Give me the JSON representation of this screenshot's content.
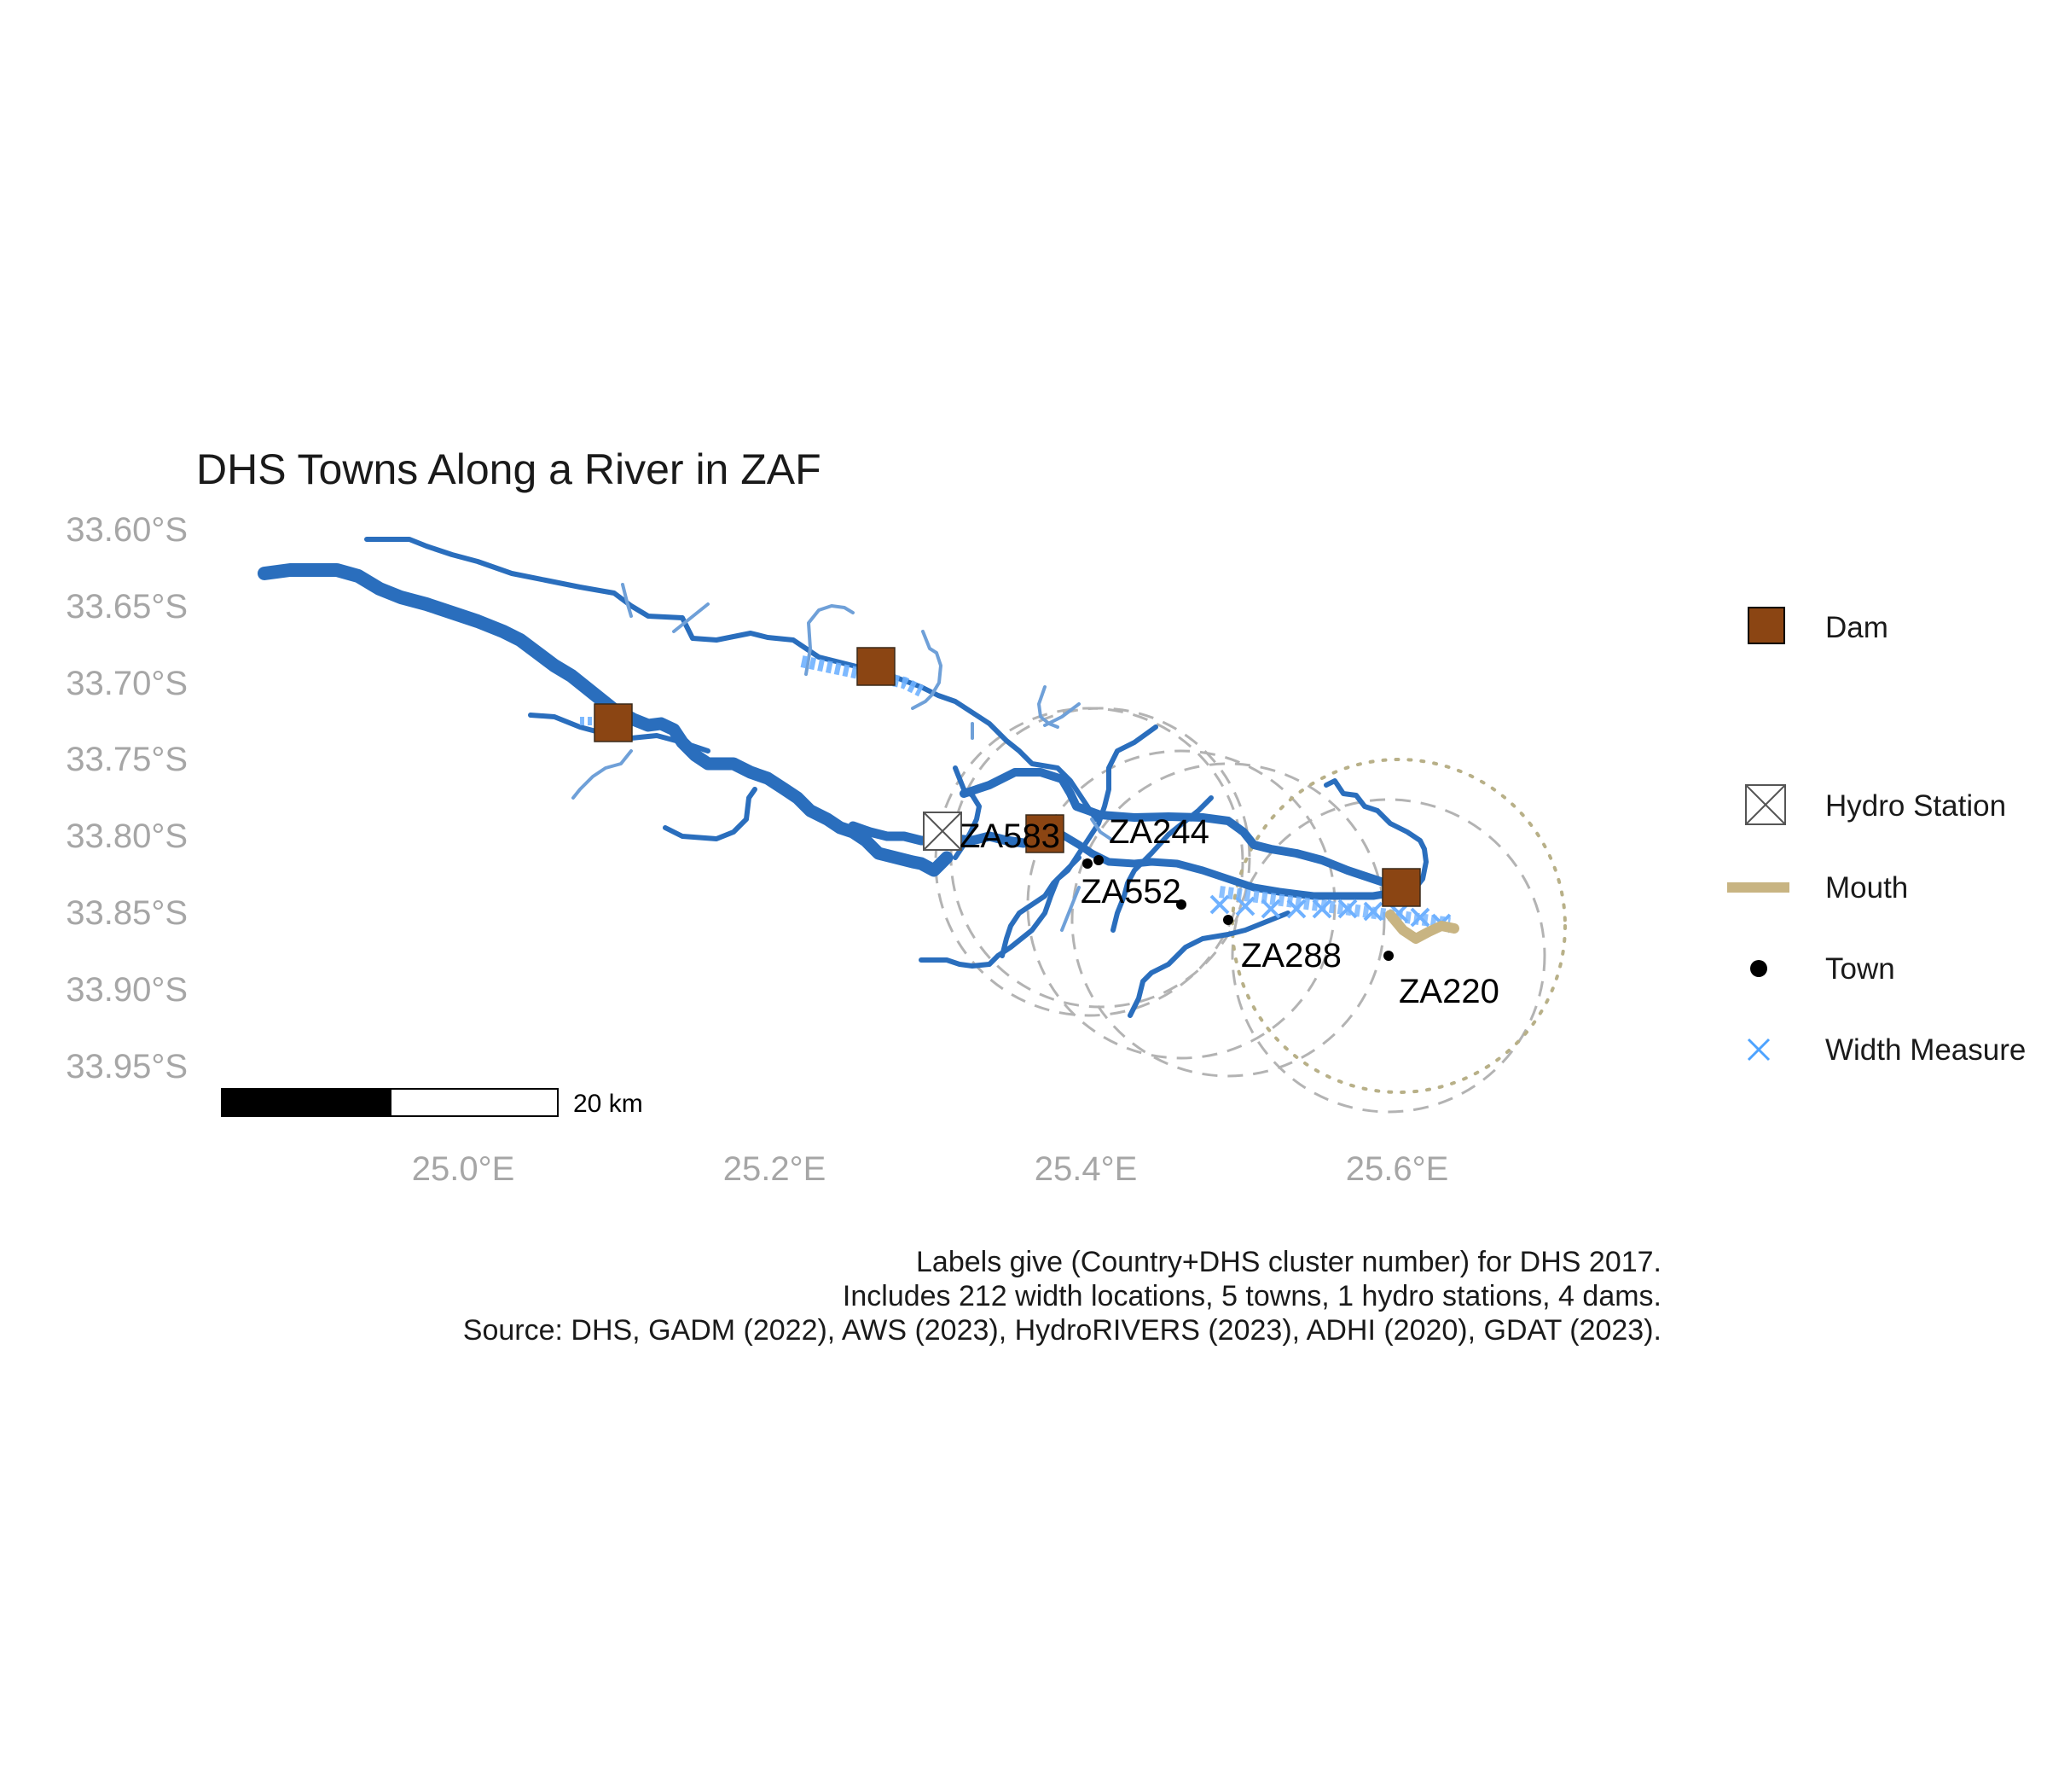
{
  "title": "DHS Towns Along a River in ZAF",
  "axes": {
    "y_ticks": [
      "33.60°S",
      "33.65°S",
      "33.70°S",
      "33.75°S",
      "33.80°S",
      "33.85°S",
      "33.90°S",
      "33.95°S"
    ],
    "x_ticks": [
      "25.0°E",
      "25.2°E",
      "25.4°E",
      "25.6°E"
    ]
  },
  "scale_bar": {
    "label": "20 km",
    "length_km": 20
  },
  "legend": {
    "items": [
      {
        "label": "Dam",
        "symbol": "square-icon",
        "color": "#8B4513"
      },
      {
        "label": "Hydro Station",
        "symbol": "crossed-box-icon",
        "color": "#555555"
      },
      {
        "label": "Mouth",
        "symbol": "line-icon",
        "color": "#C8B482"
      },
      {
        "label": "Town",
        "symbol": "dot-icon",
        "color": "#000000"
      },
      {
        "label": "Width Measure",
        "symbol": "cross-icon",
        "color": "#4da3ff"
      }
    ]
  },
  "towns": [
    {
      "label": "ZA583",
      "lon": 25.41,
      "lat": -33.822
    },
    {
      "label": "ZA244",
      "lon": 25.418,
      "lat": -33.817
    },
    {
      "label": "ZA552",
      "lon": 25.463,
      "lat": -33.847
    },
    {
      "label": "ZA288",
      "lon": 25.493,
      "lat": -33.857
    },
    {
      "label": "ZA220",
      "lon": 25.593,
      "lat": -33.88
    }
  ],
  "dams": [
    {
      "lon": 25.096,
      "lat": -33.728
    },
    {
      "lon": 25.266,
      "lat": -33.691
    },
    {
      "lon": 25.374,
      "lat": -33.8
    },
    {
      "lon": 25.6,
      "lat": -33.838
    }
  ],
  "hydro_stations": [
    {
      "lon": 25.308,
      "lat": -33.797
    }
  ],
  "caption": [
    "Labels give (Country+DHS cluster number) for DHS 2017.",
    "Includes 212 width locations, 5 towns, 1 hydro stations, 4 dams.",
    "Source: DHS, GADM (2022), AWS (2023), HydroRIVERS (2023), ADHI (2020), GDAT (2023)."
  ],
  "colors": {
    "river_main": "#2a6ebd",
    "river_minor": "#6fa0d8",
    "width_measure": "#6fb1ff",
    "dam": "#8B4513",
    "mouth": "#C8B482",
    "buffer": "#b3b3b3",
    "mouth_buffer": "#b8b088"
  }
}
